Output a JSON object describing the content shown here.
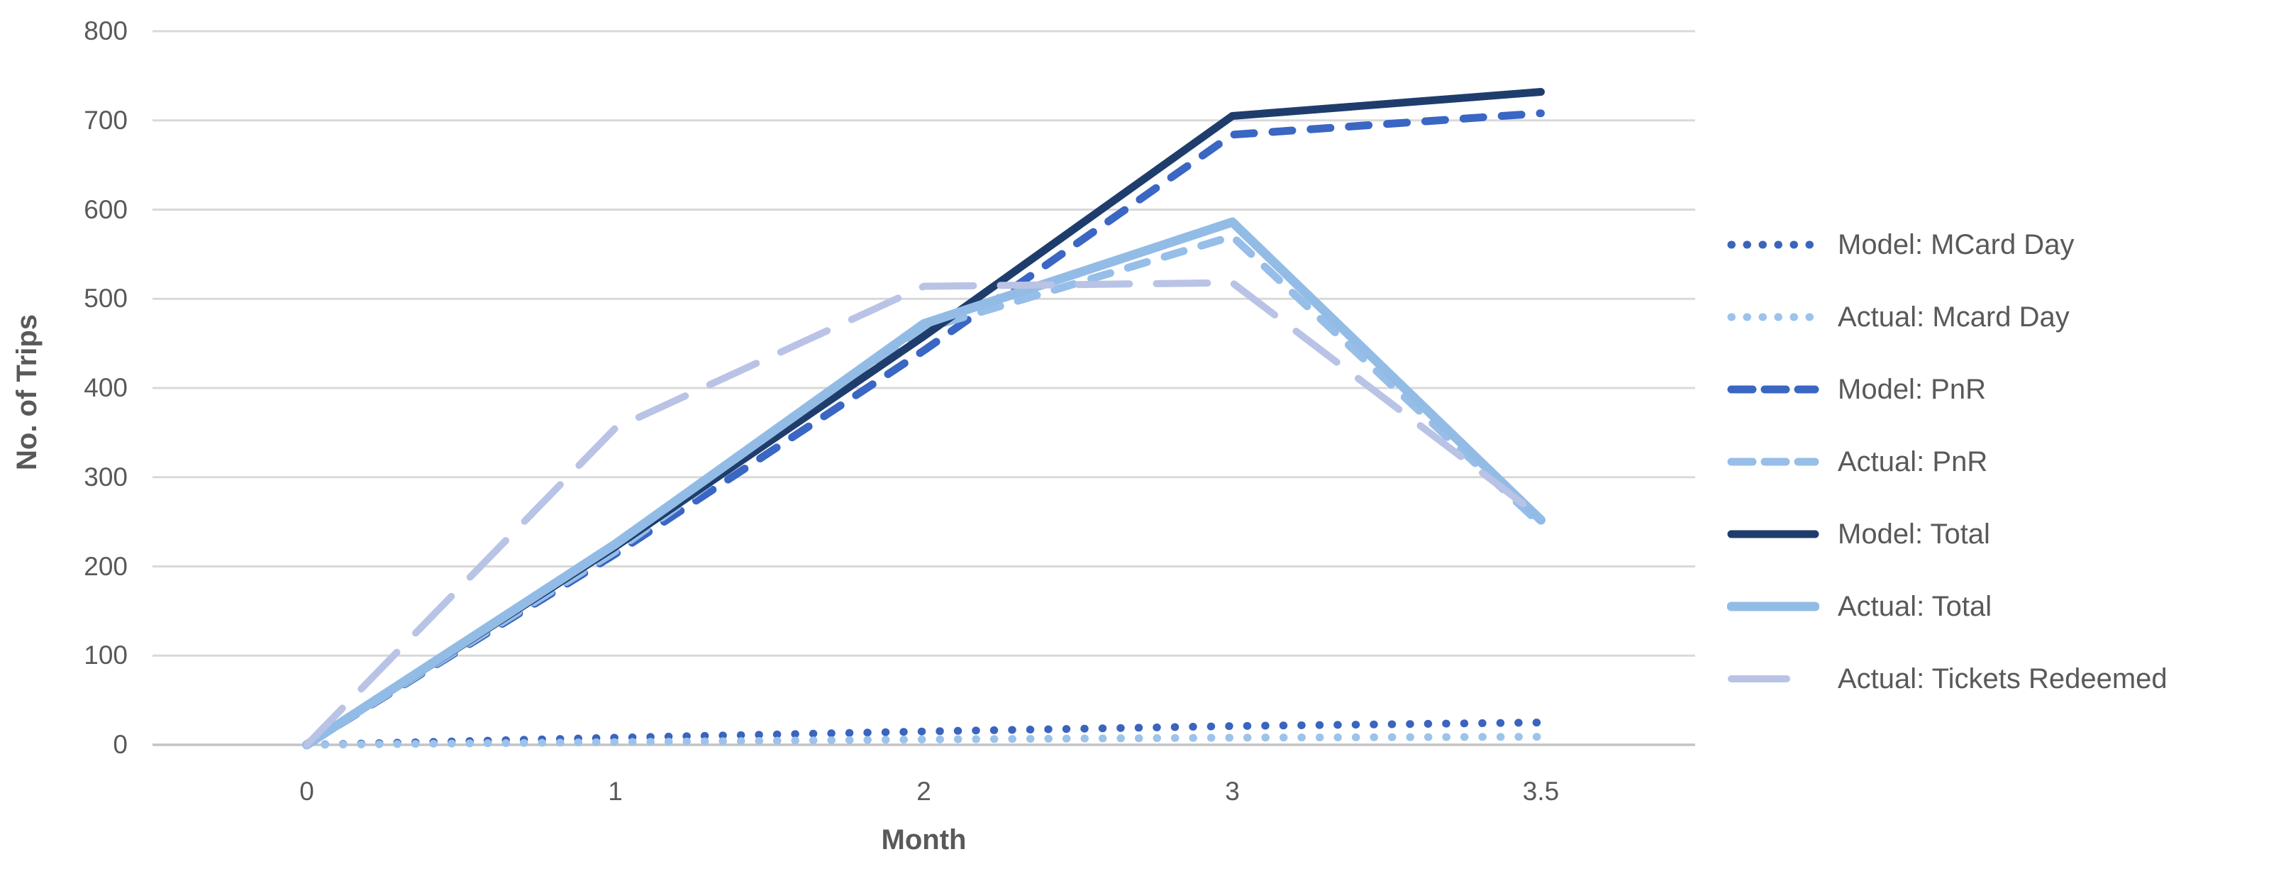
{
  "chart_data": {
    "type": "line",
    "title": "",
    "xlabel": "Month",
    "ylabel": "No. of Trips",
    "x_categories": [
      "0",
      "1",
      "2",
      "3",
      "3.5"
    ],
    "ylim": [
      0,
      800
    ],
    "yticks": [
      0,
      100,
      200,
      300,
      400,
      500,
      600,
      700,
      800
    ],
    "grid": "horizontal",
    "legend_position": "right",
    "axis_mode": "categorical-evenly-spaced",
    "series": [
      {
        "name": "Model: MCard Day",
        "style": "dotted",
        "color": "#3A64BE",
        "width": 11,
        "values": [
          0,
          8,
          15,
          21,
          25
        ]
      },
      {
        "name": "Actual: Mcard Day",
        "style": "dotted",
        "color": "#9CC3EA",
        "width": 11,
        "values": [
          0,
          3,
          6,
          8,
          9
        ]
      },
      {
        "name": "Model: PnR",
        "style": "dashed",
        "color": "#3A66C4",
        "width": 11,
        "values": [
          0,
          214,
          442,
          684,
          708
        ]
      },
      {
        "name": "Actual: PnR",
        "style": "dashed",
        "color": "#96BEE8",
        "width": 11,
        "values": [
          0,
          217,
          466,
          570,
          247
        ]
      },
      {
        "name": "Model: Total",
        "style": "solid",
        "color": "#1F3D6C",
        "width": 11,
        "values": [
          0,
          222,
          458,
          705,
          732
        ]
      },
      {
        "name": "Actual: Total",
        "style": "solid",
        "color": "#92BCE6",
        "width": 13,
        "values": [
          0,
          225,
          472,
          586,
          252
        ]
      },
      {
        "name": "Actual: Tickets Redeemed",
        "style": "long-dash",
        "color": "#B9C3E6",
        "width": 10,
        "values": [
          0,
          355,
          514,
          518,
          255
        ]
      }
    ],
    "colors": {
      "grid": "#D9D9D9",
      "axis_line": "#C4C4C4",
      "text": "#595959",
      "background": "#FFFFFF"
    }
  }
}
